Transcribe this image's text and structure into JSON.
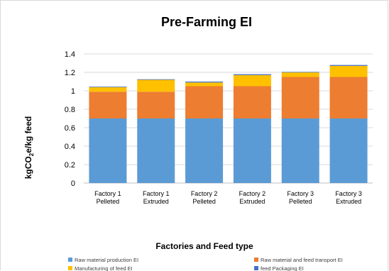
{
  "chart_data": {
    "type": "bar",
    "stacked": true,
    "title": "Pre-Farming EI",
    "xlabel": "Factories and Feed type",
    "ylabel_main": "kgCO",
    "ylabel_sub": "2",
    "ylabel_tail": "e/kg feed",
    "ylim": [
      0,
      1.4
    ],
    "yticks": [
      "0",
      "0.2",
      "0.4",
      "0.6",
      "0.8",
      "1",
      "1.2",
      "1.4"
    ],
    "grid": true,
    "legend_position": "bottom",
    "categories": [
      [
        "Factory 1",
        "Pelleted"
      ],
      [
        "Factory 1",
        "Extruded"
      ],
      [
        "Factory 2",
        "Pelleted"
      ],
      [
        "Factory 2",
        "Extruded"
      ],
      [
        "Factory 3",
        "Pelleted"
      ],
      [
        "Factory 3",
        "Extruded"
      ]
    ],
    "series": [
      {
        "name": "Raw material production EI",
        "color": "#5b9bd5",
        "values": [
          0.7,
          0.7,
          0.7,
          0.7,
          0.7,
          0.7
        ]
      },
      {
        "name": "Raw material and feed transport  EI",
        "color": "#ed7d31",
        "values": [
          0.29,
          0.29,
          0.35,
          0.35,
          0.45,
          0.45
        ]
      },
      {
        "name": "Manufacturing of feed EI",
        "color": "#ffc000",
        "values": [
          0.05,
          0.13,
          0.04,
          0.12,
          0.05,
          0.12
        ]
      },
      {
        "name": "feed Packaging EI",
        "color": "#4472c4",
        "values": [
          0.005,
          0.005,
          0.01,
          0.01,
          0.005,
          0.01
        ]
      }
    ]
  }
}
